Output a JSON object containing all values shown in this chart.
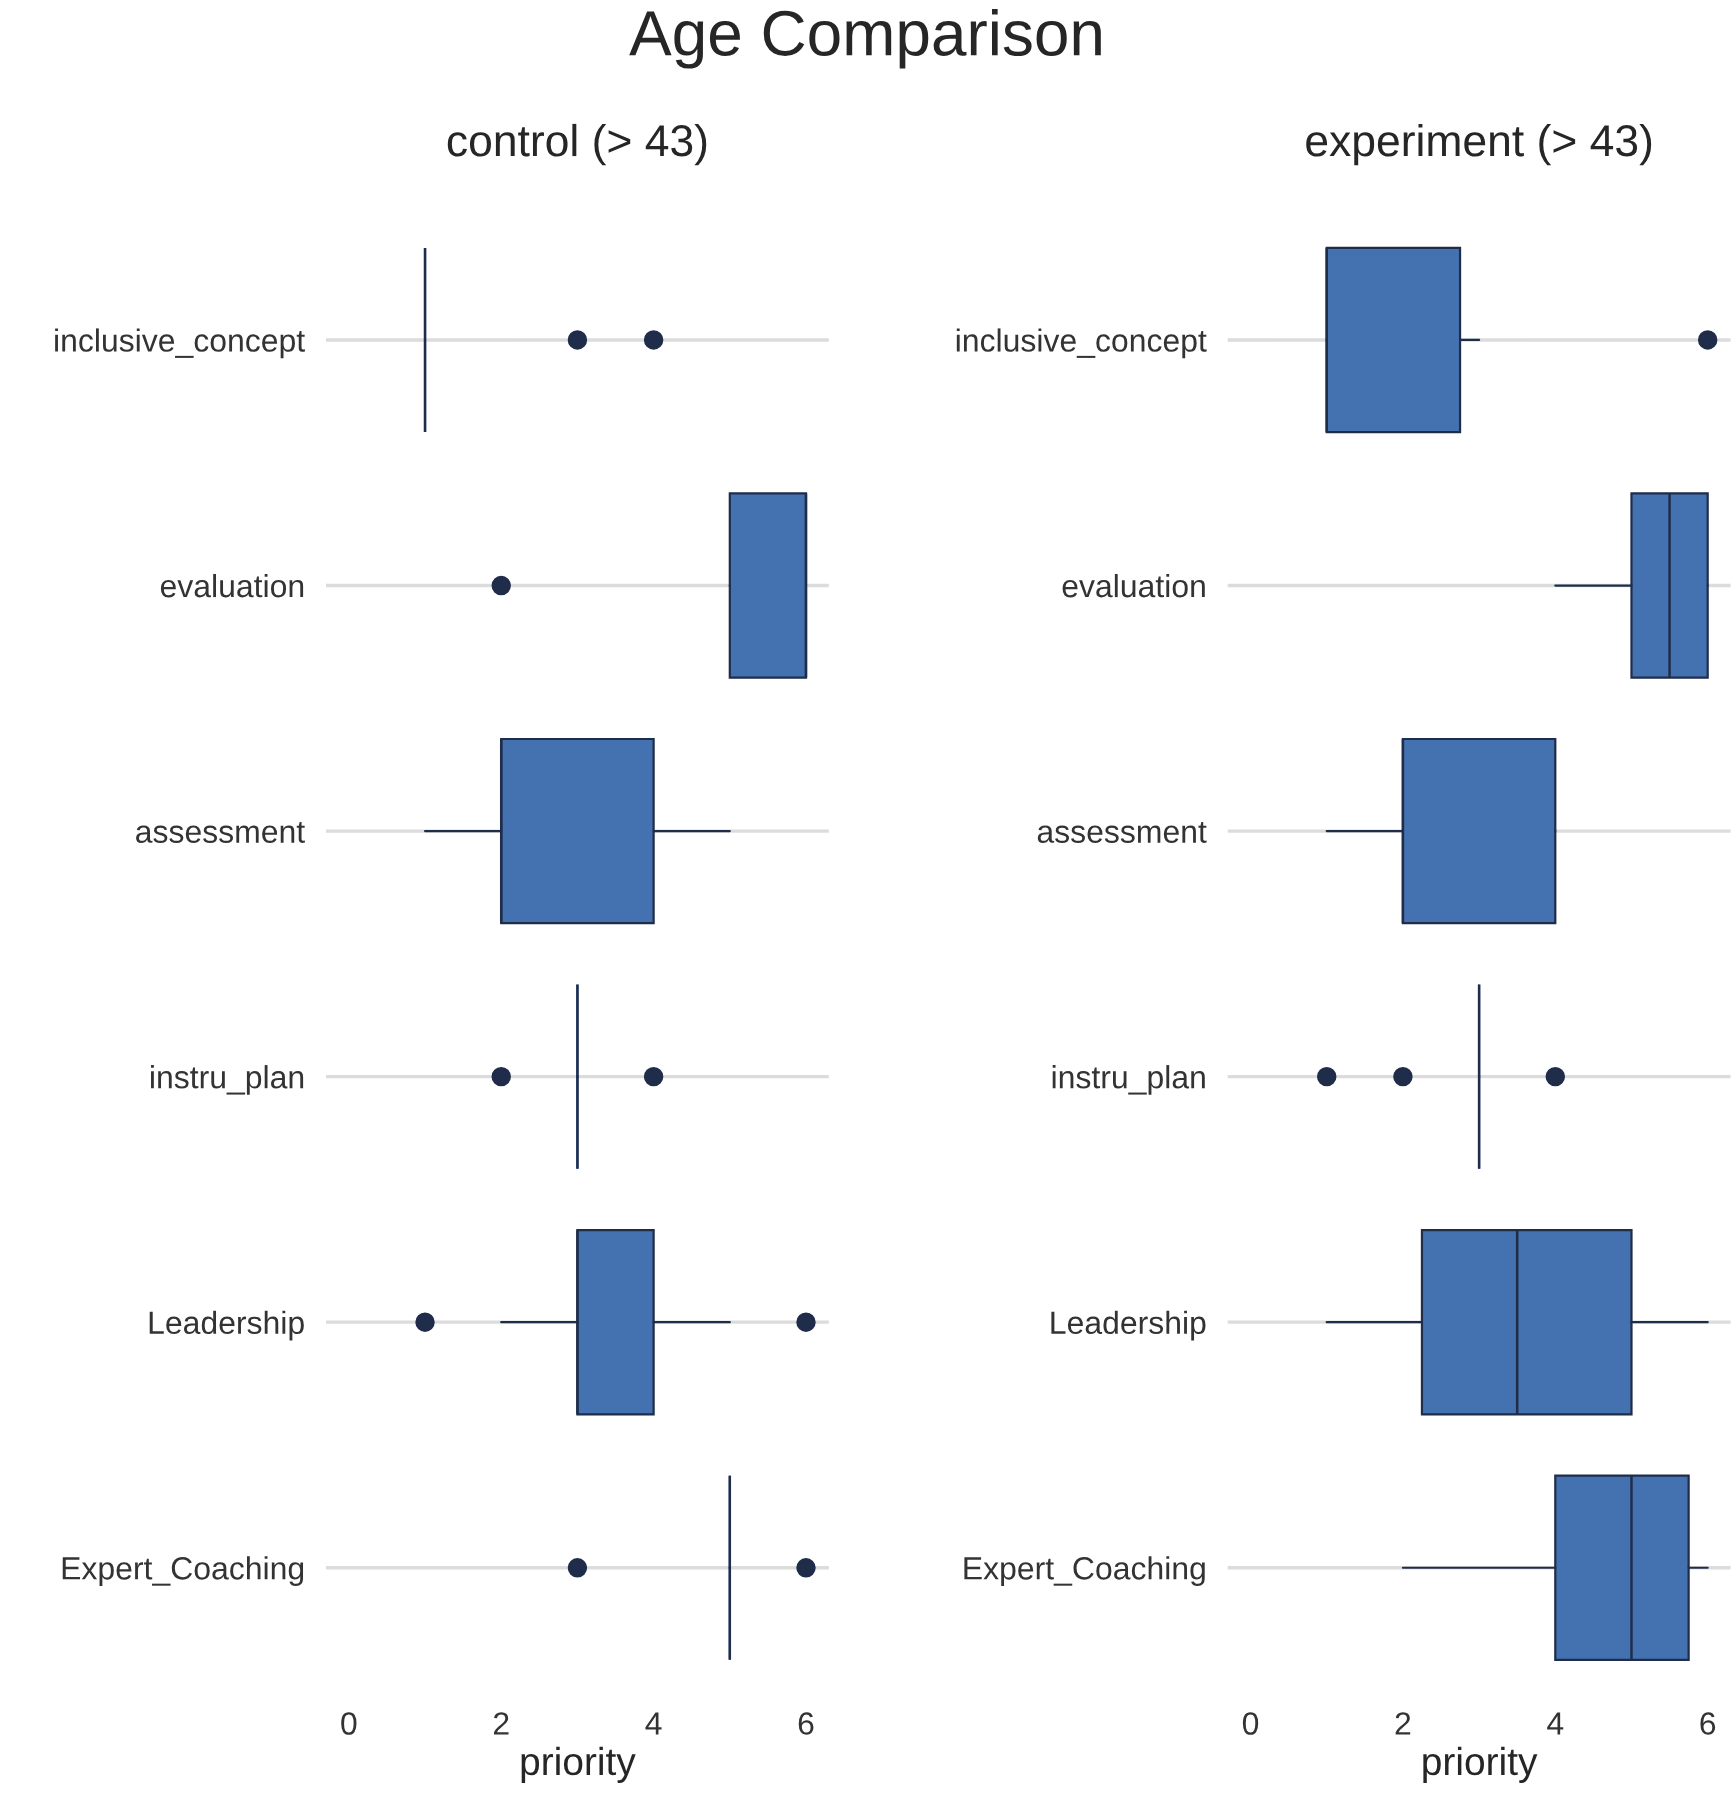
{
  "chart_data": [
    {
      "type": "box",
      "title": "Age Comparison",
      "subtitle": "control (> 43)",
      "orientation": "horizontal",
      "xlabel": "priority",
      "xlim": [
        -0.3,
        6.3
      ],
      "xticks": [
        0,
        2,
        4,
        6
      ],
      "grid": "y",
      "categories": [
        "inclusive_concept",
        "evaluation",
        "assessment",
        "instru_plan",
        "Leadership",
        "Expert_Coaching"
      ],
      "series": [
        {
          "color": "#4472b0",
          "boxes": [
            {
              "low": 1,
              "q1": 1,
              "median": 1,
              "q3": 1,
              "high": 1,
              "outliers": [
                3,
                4
              ]
            },
            {
              "low": 5,
              "q1": 5,
              "median": 6,
              "q3": 6,
              "high": 6,
              "outliers": [
                2
              ]
            },
            {
              "low": 1,
              "q1": 2,
              "median": 2,
              "q3": 4,
              "high": 5
            },
            {
              "low": 3,
              "q1": 3,
              "median": 3,
              "q3": 3,
              "high": 3,
              "outliers": [
                2,
                4
              ]
            },
            {
              "low": 2,
              "q1": 3,
              "median": 3,
              "q3": 4,
              "high": 5,
              "outliers": [
                1,
                6
              ]
            },
            {
              "low": 5,
              "q1": 5,
              "median": 5,
              "q3": 5,
              "high": 5,
              "outliers": [
                3,
                6
              ]
            }
          ]
        }
      ]
    },
    {
      "type": "box",
      "subtitle": "experiment (> 43)",
      "orientation": "horizontal",
      "xlabel": "priority",
      "xlim": [
        -0.3,
        6.3
      ],
      "xticks": [
        0,
        2,
        4,
        6
      ],
      "grid": "y",
      "categories": [
        "inclusive_concept",
        "evaluation",
        "assessment",
        "instru_plan",
        "Leadership",
        "Expert_Coaching"
      ],
      "series": [
        {
          "color": "#4472b0",
          "boxes": [
            {
              "low": 1,
              "q1": 1,
              "median": 1,
              "q3": 2.75,
              "high": 3,
              "outliers": [
                6
              ]
            },
            {
              "low": 4,
              "q1": 5,
              "median": 5.5,
              "q3": 6,
              "high": 6
            },
            {
              "low": 1,
              "q1": 2,
              "median": 2,
              "q3": 4,
              "high": 4
            },
            {
              "low": 3,
              "q1": 3,
              "median": 3,
              "q3": 3,
              "high": 3,
              "outliers": [
                1,
                2,
                4
              ]
            },
            {
              "low": 1,
              "q1": 2.25,
              "median": 3.5,
              "q3": 5,
              "high": 6
            },
            {
              "low": 2,
              "q1": 4,
              "median": 5,
              "q3": 5.75,
              "high": 6
            }
          ]
        }
      ]
    }
  ]
}
